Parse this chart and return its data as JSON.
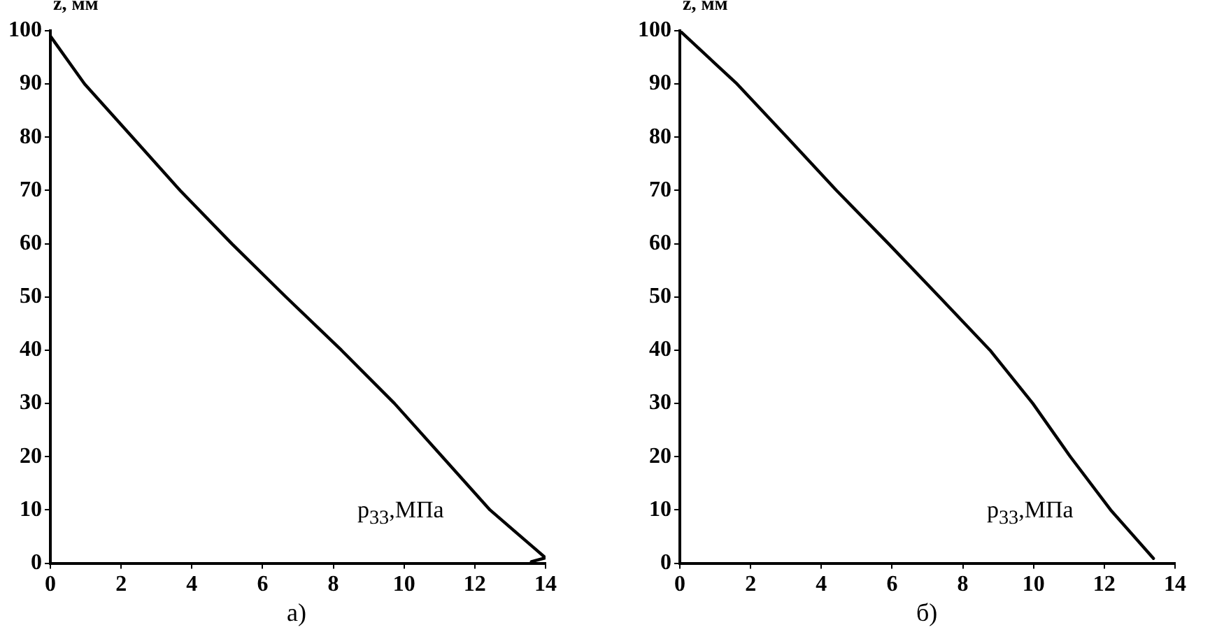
{
  "chart_data": [
    {
      "type": "line",
      "xlabel": "p$_{33}$,МПа",
      "ylabel": "z, мм",
      "annotations": [
        "а)"
      ],
      "xlim": [
        0,
        14
      ],
      "ylim": [
        0,
        100
      ],
      "xticks": [
        0,
        2,
        4,
        6,
        8,
        10,
        12,
        14
      ],
      "yticks": [
        0,
        10,
        20,
        30,
        40,
        50,
        60,
        70,
        80,
        90,
        100
      ],
      "grid": false,
      "legend": false,
      "marker": "none",
      "line_style": "solid",
      "series": [
        {
          "color": "#000000",
          "x": [
            0,
            0.97,
            2.32,
            3.67,
            5.13,
            6.66,
            8.23,
            9.73,
            11.08,
            12.43,
            14,
            13.6
          ],
          "values": [
            99,
            90,
            80,
            70,
            60,
            50,
            40,
            30,
            20,
            10,
            1,
            0.3
          ]
        }
      ]
    },
    {
      "type": "line",
      "xlabel": "p$_{33}$,МПа",
      "ylabel": "z, мм",
      "annotations": [
        "б)"
      ],
      "xlim": [
        0,
        14
      ],
      "ylim": [
        0,
        100
      ],
      "xticks": [
        0,
        2,
        4,
        6,
        8,
        10,
        12,
        14
      ],
      "yticks": [
        0,
        10,
        20,
        30,
        40,
        50,
        60,
        70,
        80,
        90,
        100
      ],
      "grid": false,
      "legend": false,
      "marker": "none",
      "line_style": "solid",
      "series": [
        {
          "color": "#000000",
          "x": [
            0,
            1.62,
            3.03,
            4.43,
            5.9,
            7.34,
            8.77,
            9.98,
            11.04,
            12.18,
            13.39
          ],
          "values": [
            100,
            90,
            80,
            70,
            60,
            50,
            40,
            30,
            20,
            10,
            0.9
          ]
        }
      ]
    }
  ]
}
